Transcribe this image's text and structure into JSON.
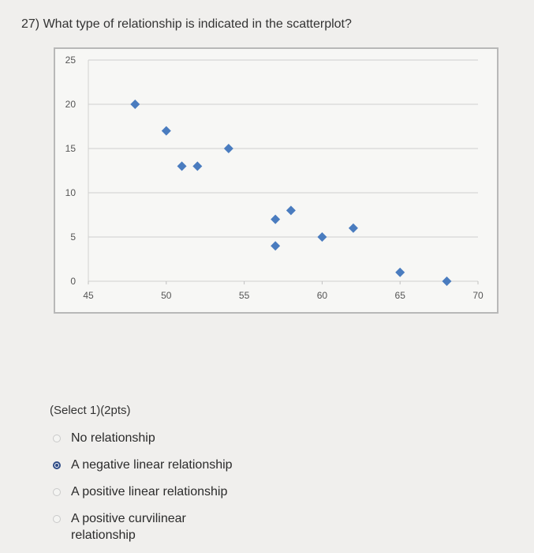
{
  "question": {
    "text": "27) What type of relationship is indicated in the scatterplot?"
  },
  "chart_data": {
    "type": "scatter",
    "title": "",
    "xlabel": "",
    "ylabel": "",
    "xlim": [
      45,
      70
    ],
    "ylim": [
      0,
      25
    ],
    "x_ticks": [
      45,
      50,
      55,
      60,
      65,
      70
    ],
    "y_ticks": [
      0,
      5,
      10,
      15,
      20,
      25
    ],
    "grid": "horizontal",
    "marker": "diamond",
    "color": "#4a7cbf",
    "points": [
      {
        "x": 48,
        "y": 20
      },
      {
        "x": 50,
        "y": 17
      },
      {
        "x": 51,
        "y": 13
      },
      {
        "x": 52,
        "y": 13
      },
      {
        "x": 54,
        "y": 15
      },
      {
        "x": 57,
        "y": 7
      },
      {
        "x": 57,
        "y": 4
      },
      {
        "x": 58,
        "y": 8
      },
      {
        "x": 60,
        "y": 5
      },
      {
        "x": 62,
        "y": 6
      },
      {
        "x": 65,
        "y": 1
      },
      {
        "x": 68,
        "y": 0
      }
    ]
  },
  "answer": {
    "hint": "(Select 1)(2pts)",
    "options": [
      {
        "label": "No relationship",
        "selected": false
      },
      {
        "label": "A negative linear relationship",
        "selected": true
      },
      {
        "label": "A positive linear relationship",
        "selected": false
      },
      {
        "label": "A positive curvilinear relationship",
        "selected": false
      }
    ]
  },
  "colors": {
    "accent": "#2f4c86",
    "marker": "#4a7cbf",
    "gridline": "#cfcfcf"
  }
}
